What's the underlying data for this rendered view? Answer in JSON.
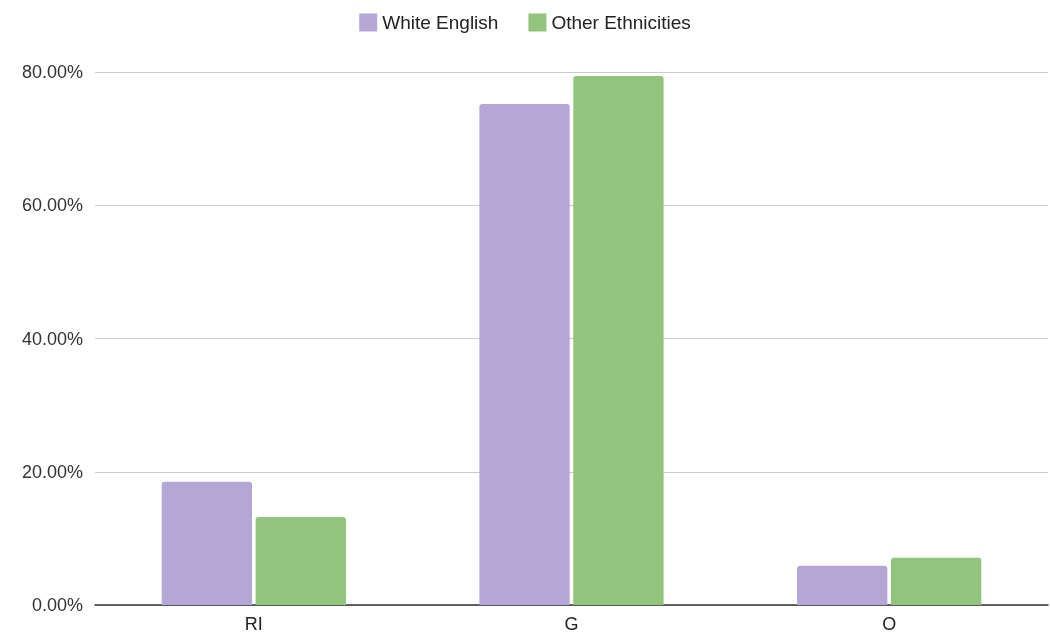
{
  "chart_data": {
    "type": "bar",
    "categories": [
      "RI",
      "G",
      "O"
    ],
    "series": [
      {
        "name": "White English",
        "color": "#b4a7d6",
        "values": [
          18.5,
          75.2,
          5.9
        ]
      },
      {
        "name": "Other Ethnicities",
        "color": "#93c47d",
        "values": [
          13.2,
          79.4,
          7.1
        ]
      }
    ],
    "ylim": [
      0,
      80
    ],
    "yticks": [
      {
        "value": 0,
        "label": "0.00%"
      },
      {
        "value": 20,
        "label": "20.00%"
      },
      {
        "value": 40,
        "label": "40.00%"
      },
      {
        "value": 60,
        "label": "60.00%"
      },
      {
        "value": 80,
        "label": "80.00%"
      }
    ],
    "grid": "y",
    "legend": "top"
  }
}
